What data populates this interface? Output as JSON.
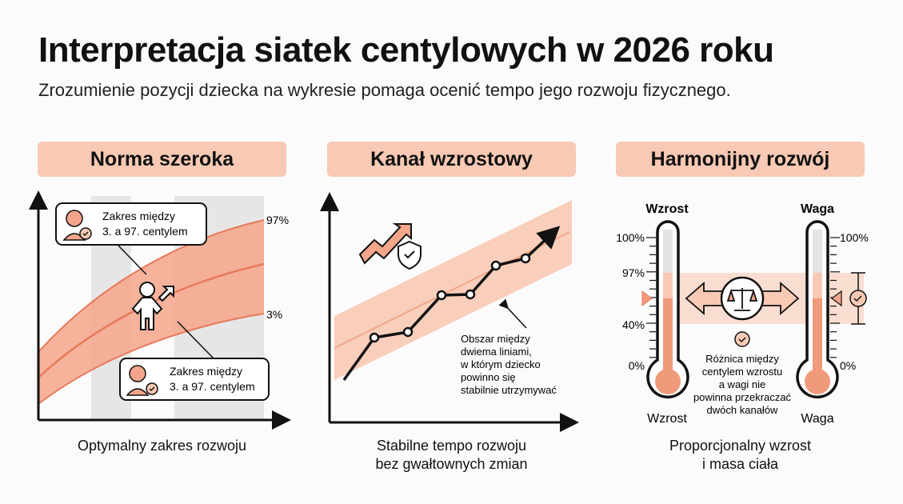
{
  "title": "Interpretacja siatek centylowych w 2026 roku",
  "subtitle": "Zrozumienie pozycji dziecka na wykresie pomaga ocenić tempo jego rozwoju fizycznego.",
  "colors": {
    "header_bg": "#f8c9b4",
    "band": "#f4a58a",
    "line": "#e8795a",
    "stroke": "#111111",
    "stripe": "#e6e6e6"
  },
  "panels": [
    {
      "header": "Norma szeroka",
      "caption": "Optymalny zakres rozwoju",
      "label_top": "97%",
      "label_bottom": "3%",
      "callout_top": {
        "line1": "Zakres między",
        "line2": "3. a 97. centylem",
        "icon": "child-face-check-icon"
      },
      "callout_bottom": {
        "line1": "Zakres między",
        "line2": "3. a 97. centylem",
        "icon": "child-face-check-icon"
      },
      "center_icon": "child-growth-arrow-icon"
    },
    {
      "header": "Kanał wzrostowy",
      "caption_line1": "Stabilne tempo rozwoju",
      "caption_line2": "bez gwałtownych zmian",
      "note": [
        "Obszar między",
        "dwiema liniami,",
        "w którym dziecko",
        "powinno się",
        "stabilnie utrzymywać"
      ],
      "icon": "trend-shield-check-icon"
    },
    {
      "header": "Harmonijny rozwój",
      "caption_line1": "Proporcjonalny wzrost",
      "caption_line2": "i masa ciała",
      "left_top": "Wzrost",
      "left_bottom": "Wzrost",
      "right_top": "Waga",
      "right_bottom": "Waga",
      "left_ticks": [
        "100%",
        "97%",
        "40%",
        "0%"
      ],
      "right_ticks": [
        "100%",
        "0%"
      ],
      "fill_level_percent": 60,
      "note": [
        "Różnica między",
        "centylem wzrostu",
        "a wagi nie",
        "powinna przekraczać",
        "dwóch kanałów"
      ],
      "center_icon": "balance-scale-icon"
    }
  ]
}
